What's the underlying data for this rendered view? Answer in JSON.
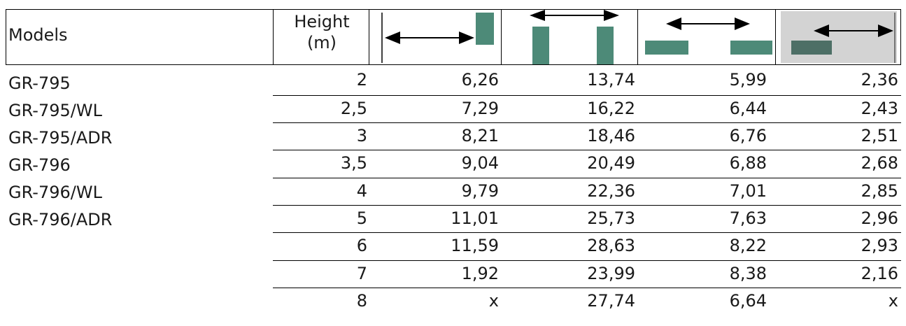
{
  "header": {
    "models_label": "Models",
    "height_label_line1": "Height",
    "height_label_line2": "(m)",
    "diagrams": [
      {
        "icon": "single-post-right-arrow-icon"
      },
      {
        "icon": "two-posts-span-arrow-icon"
      },
      {
        "icon": "two-low-bars-span-arrow-icon"
      },
      {
        "icon": "grey-panel-bar-arrow-icon"
      }
    ],
    "bar_color": "#4d8a78",
    "panel_color": "#d3d3d3"
  },
  "models": [
    "GR-795",
    "GR-795/WL",
    "GR-795/ADR",
    "GR-796",
    "GR-796/WL",
    "GR-796/ADR"
  ],
  "rows": [
    {
      "height": "2",
      "v1": "6,26",
      "v2": "13,74",
      "v3": "5,99",
      "v4": "2,36"
    },
    {
      "height": "2,5",
      "v1": "7,29",
      "v2": "16,22",
      "v3": "6,44",
      "v4": "2,43"
    },
    {
      "height": "3",
      "v1": "8,21",
      "v2": "18,46",
      "v3": "6,76",
      "v4": "2,51"
    },
    {
      "height": "3,5",
      "v1": "9,04",
      "v2": "20,49",
      "v3": "6,88",
      "v4": "2,68"
    },
    {
      "height": "4",
      "v1": "9,79",
      "v2": "22,36",
      "v3": "7,01",
      "v4": "2,85"
    },
    {
      "height": "5",
      "v1": "11,01",
      "v2": "25,73",
      "v3": "7,63",
      "v4": "2,96"
    },
    {
      "height": "6",
      "v1": "11,59",
      "v2": "28,63",
      "v3": "8,22",
      "v4": "2,93"
    },
    {
      "height": "7",
      "v1": "1,92",
      "v2": "23,99",
      "v3": "8,38",
      "v4": "2,16"
    },
    {
      "height": "8",
      "v1": "x",
      "v2": "27,74",
      "v3": "6,64",
      "v4": "x"
    }
  ]
}
